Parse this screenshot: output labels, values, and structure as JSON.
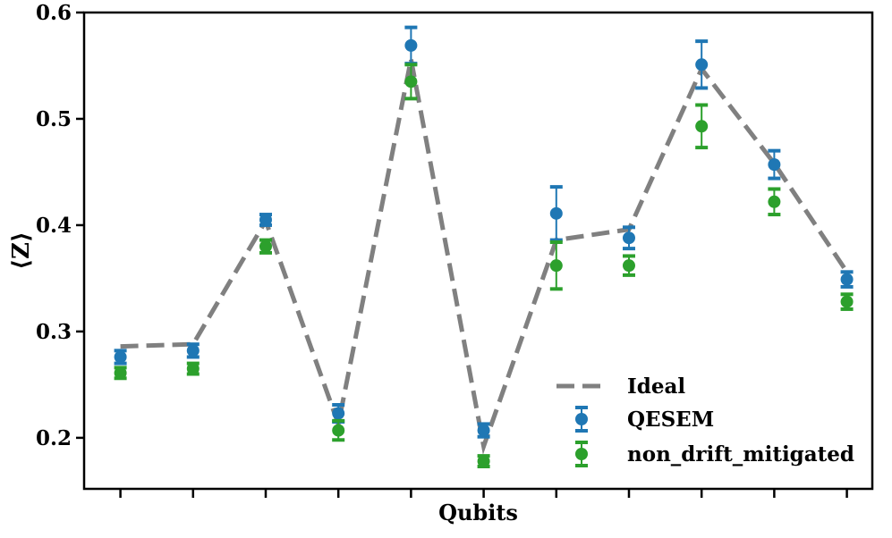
{
  "chart_data": {
    "type": "scatter",
    "title": "",
    "xlabel": "Qubits",
    "ylabel": "⟨Z⟩",
    "ylim": [
      0.152,
      0.6
    ],
    "yticks": [
      0.2,
      0.3,
      0.4,
      0.5,
      0.6
    ],
    "ytick_labels": [
      "0.2",
      "0.3",
      "0.4",
      "0.5",
      "0.6"
    ],
    "xlim": [
      -0.5,
      10.35
    ],
    "x": [
      0,
      1,
      2,
      3,
      4,
      5,
      6,
      7,
      8,
      9,
      10
    ],
    "grid": false,
    "legend_position": "bottom-right",
    "series": [
      {
        "name": "Ideal",
        "kind": "line",
        "style": "dashed",
        "color": "#808080",
        "values": [
          0.286,
          0.288,
          0.404,
          0.213,
          0.556,
          0.192,
          0.386,
          0.396,
          0.547,
          0.458,
          0.356
        ]
      },
      {
        "name": "QESEM",
        "kind": "errorbar",
        "color": "#1f77b4",
        "values": [
          0.276,
          0.282,
          0.405,
          0.223,
          0.569,
          0.207,
          0.411,
          0.388,
          0.551,
          0.457,
          0.349
        ],
        "errors": [
          0.006,
          0.006,
          0.005,
          0.008,
          0.017,
          0.006,
          0.025,
          0.01,
          0.022,
          0.013,
          0.007
        ]
      },
      {
        "name": "non_drift_mitigated",
        "kind": "errorbar",
        "color": "#2ca02c",
        "values": [
          0.261,
          0.265,
          0.38,
          0.207,
          0.535,
          0.178,
          0.362,
          0.362,
          0.493,
          0.422,
          0.328
        ],
        "errors": [
          0.005,
          0.005,
          0.006,
          0.009,
          0.016,
          0.005,
          0.022,
          0.009,
          0.02,
          0.012,
          0.007
        ]
      }
    ]
  }
}
